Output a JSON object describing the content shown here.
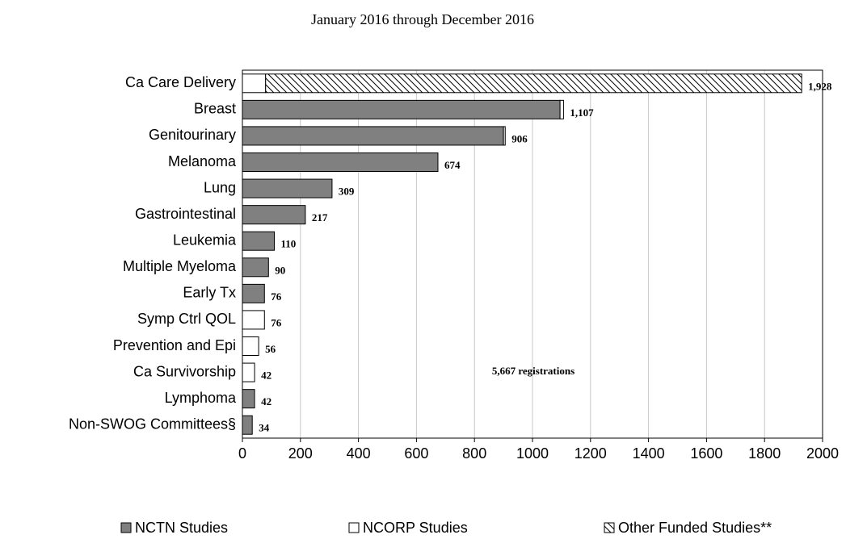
{
  "chart_data": {
    "type": "stacked-barh",
    "title": "January 2016 through December 2016",
    "annotation": "5,667 registrations",
    "categories": [
      "Ca Care Delivery",
      "Breast",
      "Genitourinary",
      "Melanoma",
      "Lung",
      "Gastrointestinal",
      "Leukemia",
      "Multiple Myeloma",
      "Early Tx",
      "Symp Ctrl QOL",
      "Prevention and Epi",
      "Ca Survivorship",
      "Lymphoma",
      "Non-SWOG Committees§"
    ],
    "series": [
      {
        "name": "NCTN Studies",
        "color": "#808080",
        "values": [
          null,
          1095,
          900,
          674,
          309,
          217,
          110,
          90,
          76,
          null,
          null,
          null,
          42,
          34
        ]
      },
      {
        "name": "NCORP Studies",
        "color": "#ffffff",
        "values": [
          80,
          12,
          6,
          null,
          null,
          null,
          null,
          null,
          null,
          76,
          56,
          42,
          null,
          null
        ]
      },
      {
        "name": "Other Funded Studies**",
        "color": "#ffffff",
        "pattern": "hatch",
        "values": [
          1848,
          null,
          null,
          null,
          null,
          null,
          null,
          null,
          null,
          null,
          null,
          null,
          null,
          null
        ]
      }
    ],
    "total_labels": [
      "1,928",
      "1,107",
      "906",
      "674",
      "309",
      "217",
      "110",
      "90",
      "76",
      "76",
      "56",
      "42",
      "42",
      "34"
    ],
    "xlim": [
      0,
      2000
    ],
    "xticks": [
      0,
      200,
      400,
      600,
      800,
      1000,
      1200,
      1400,
      1600,
      1800,
      2000
    ],
    "grid": true,
    "legend": "bottom"
  }
}
